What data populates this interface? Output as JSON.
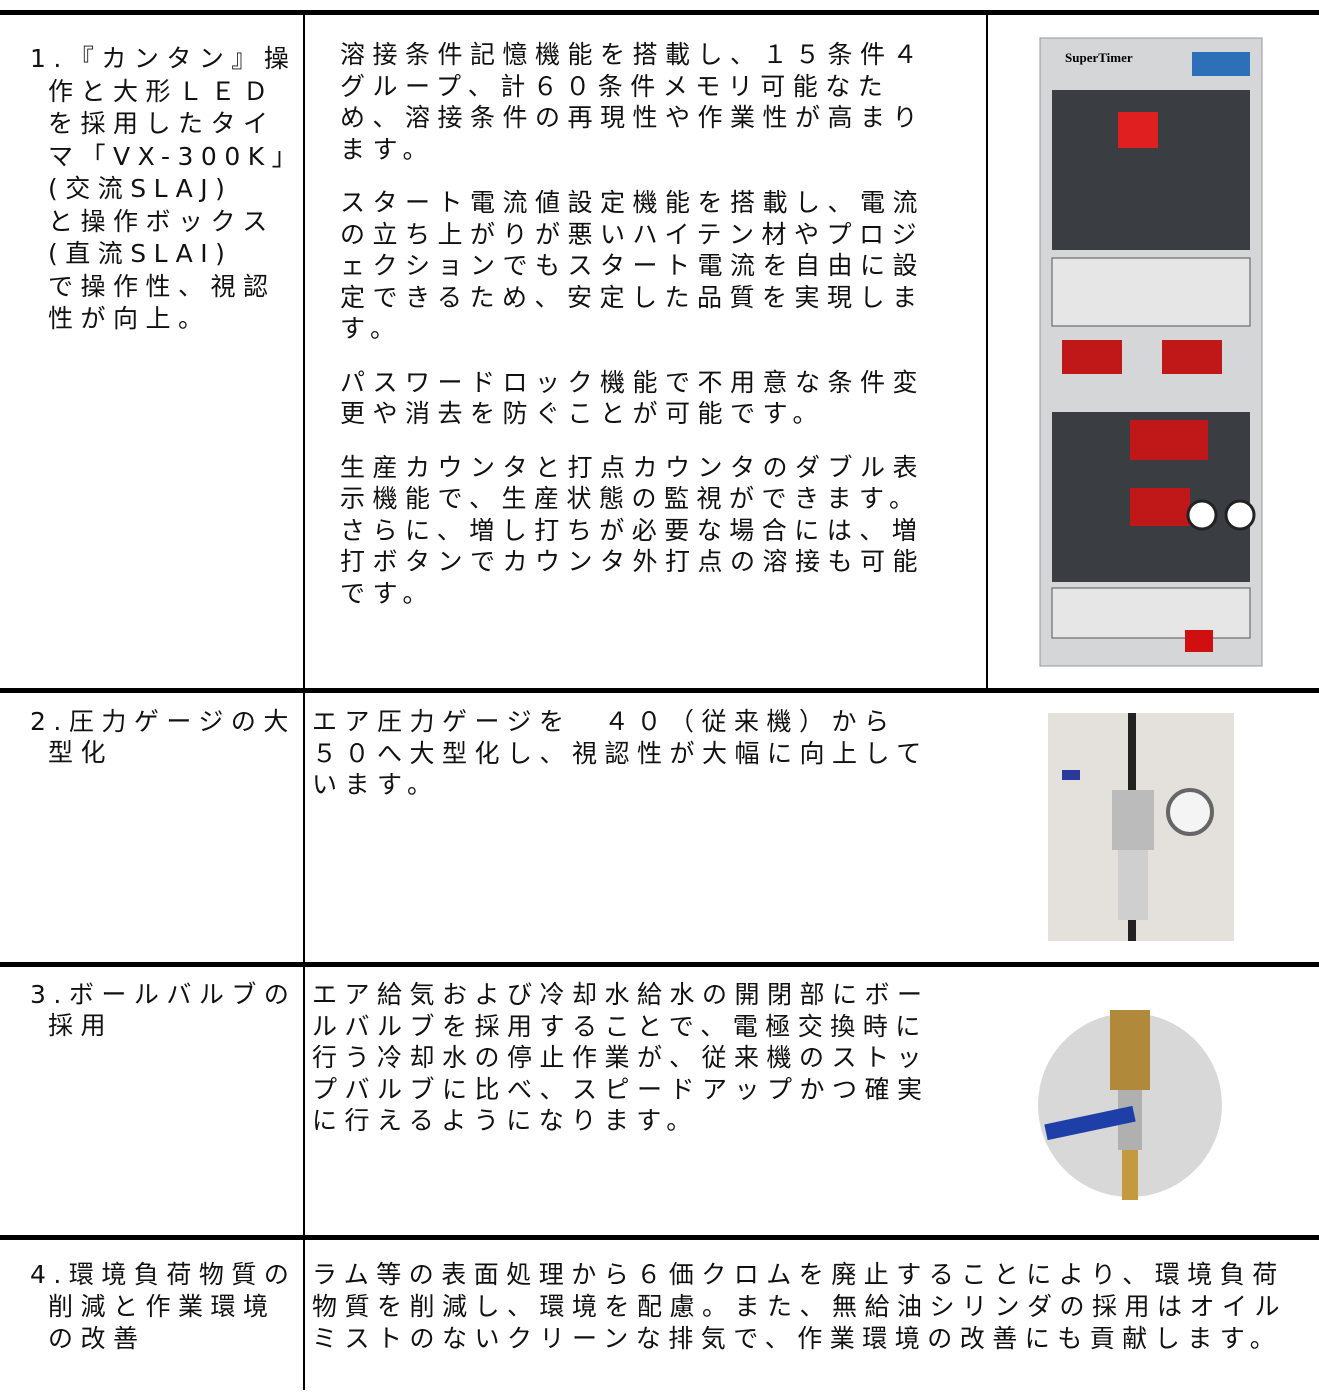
{
  "rows": [
    {
      "label": [
        "1.『カンタン』操",
        "作と大形ＬＥＤ",
        "を採用したタイ",
        "マ「VX-300K」",
        "(交流SLAJ)",
        "と操作ボックス",
        "(直流SLAI)",
        "で操作性、視認",
        "性が向上。"
      ],
      "paragraphs": [
        [
          "溶接条件記憶機能を搭載し、１５条件４",
          "グループ、計６０条件メモリ可能なた",
          "め、溶接条件の再現性や作業性が高まり",
          "ます。"
        ],
        [
          "スタート電流値設定機能を搭載し、電流",
          "の立ち上がりが悪いハイテン材やプロジ",
          "ェクションでもスタート電流を自由に設",
          "定できるため、安定した品質を実現しま",
          "す。"
        ],
        [
          "パスワードロック機能で不用意な条件変",
          "更や消去を防ぐことが可能です。"
        ],
        [
          "生産カウンタと打点カウンタのダブル表",
          "示機能で、生産状態の監視ができます。",
          "さらに、増し打ちが必要な場合には、増",
          "打ボタンでカウンタ外打点の溶接も可能",
          "です。"
        ]
      ]
    },
    {
      "label": [
        "2.圧力ゲージの大",
        "型化"
      ],
      "paragraphs": [
        [
          "エア圧力ゲージを　４０（従来機）から",
          "５０へ大型化し、視認性が大幅に向上して",
          "います。"
        ]
      ]
    },
    {
      "label": [
        "3.ボールバルブの",
        "採用"
      ],
      "paragraphs": [
        [
          "エア給気および冷却水給水の開閉部にボー",
          "ルバルブを採用することで、電極交換時に",
          "行う冷却水の停止作業が、従来機のストッ",
          "プバルブに比べ、スピードアップかつ確実",
          "に行えるようになります。"
        ]
      ]
    },
    {
      "label": [
        "4.環境負荷物質の",
        "削減と作業環境",
        "の改善"
      ],
      "paragraphs": [
        [
          "ラム等の表面処理から６価クロムを廃止することにより、環境負荷",
          "物質を削減し、環境を配慮。また、無給油シリンダの採用はオイル",
          "ミストのないクリーンな排気で、作業環境の改善にも貢献します。"
        ]
      ]
    }
  ]
}
